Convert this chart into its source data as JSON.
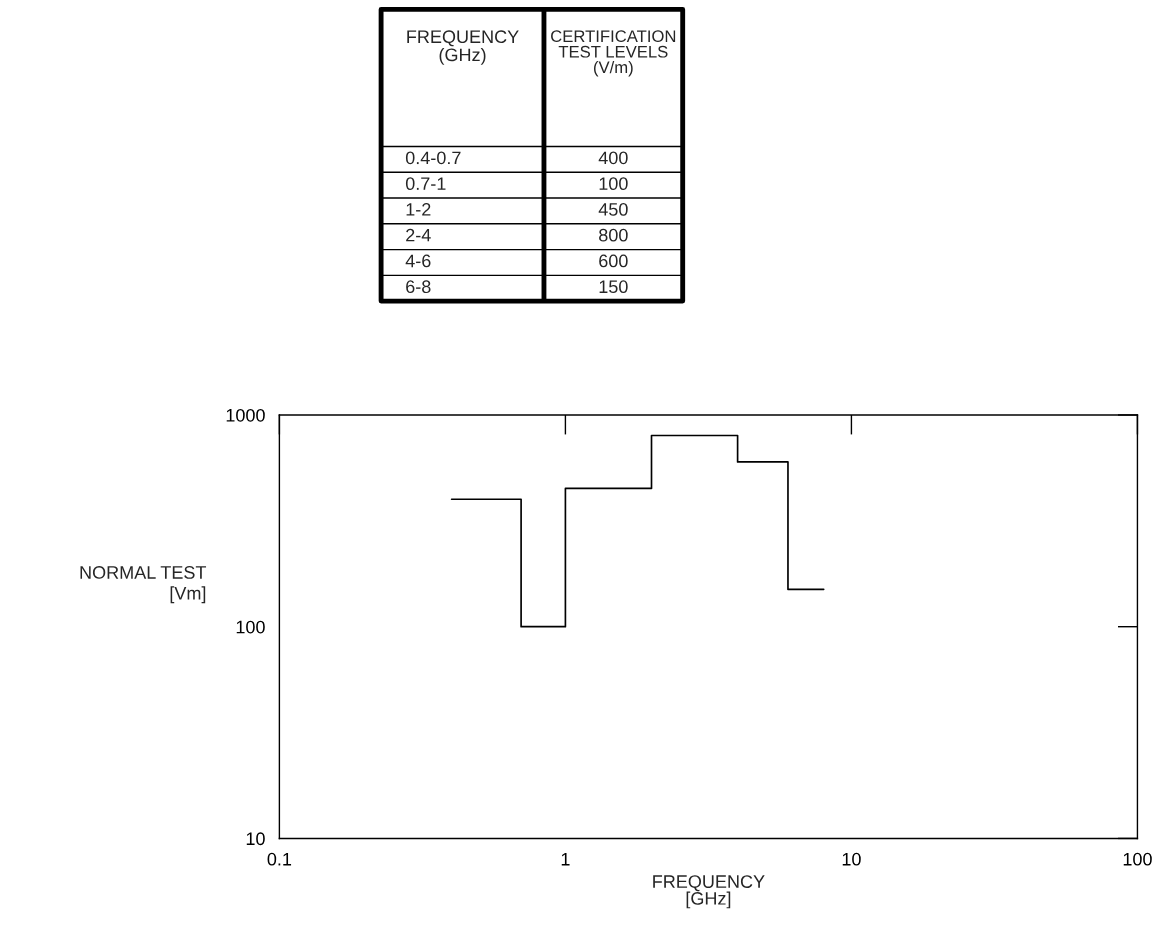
{
  "chart_data": {
    "type": "step",
    "xlabel": "FREQUENCY\n[GHz]",
    "ylabel": "NORMAL TEST\n    [Vm]",
    "x": [
      0.4,
      0.7,
      1,
      2,
      4,
      6,
      8
    ],
    "series": [
      {
        "color": "#000000",
        "values": [
          400,
          100,
          450,
          800,
          600,
          150,
          150
        ]
      }
    ],
    "annotations": [
      "FREQUENCY\n(GHz)",
      "CERTIFICATION\nTEST LEVELS\n(V/m)",
      "0.4-0.7",
      "400",
      "0.7-1",
      "100",
      "1-2",
      "450",
      "2-4",
      "800",
      "4-6",
      "600",
      "6-8",
      "150"
    ],
    "log": "xy",
    "xlim": [
      0.1,
      100
    ],
    "ylim": [
      10,
      1000
    ],
    "xticks": [
      0.1,
      1,
      10,
      100
    ],
    "yticks": [
      10,
      100,
      1000
    ],
    "grid": false,
    "legend": false,
    "marker": "none",
    "line_style": "solid"
  }
}
